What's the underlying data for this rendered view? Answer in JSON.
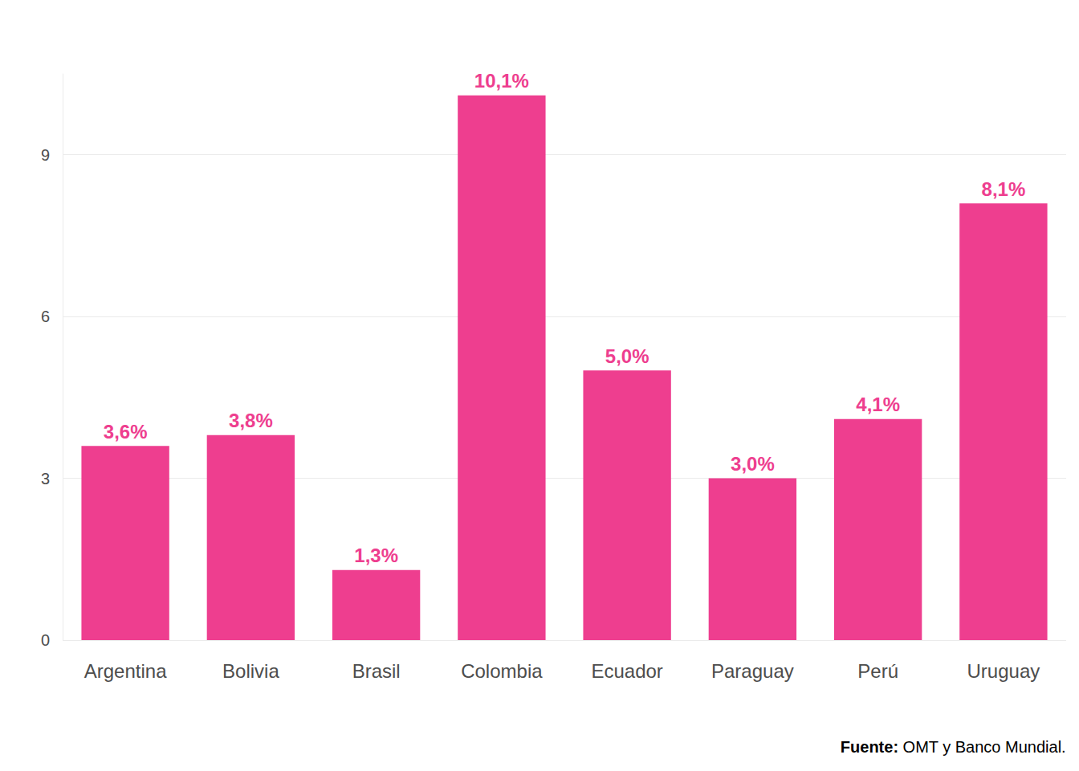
{
  "chart_data": {
    "type": "bar",
    "categories": [
      "Argentina",
      "Bolivia",
      "Brasil",
      "Colombia",
      "Ecuador",
      "Paraguay",
      "Perú",
      "Uruguay"
    ],
    "values": [
      3.6,
      3.8,
      1.3,
      10.1,
      5.0,
      3.0,
      4.1,
      8.1
    ],
    "value_labels": [
      "3,6%",
      "3,8%",
      "1,3%",
      "10,1%",
      "5,0%",
      "3,0%",
      "4,1%",
      "8,1%"
    ],
    "color": "#ee3e8f",
    "ylim": [
      0,
      10.5
    ],
    "yticks": [
      0,
      3,
      6,
      9
    ],
    "grid": true,
    "data_labels": true,
    "source": "Fuente: OMT y Banco Mundial."
  }
}
